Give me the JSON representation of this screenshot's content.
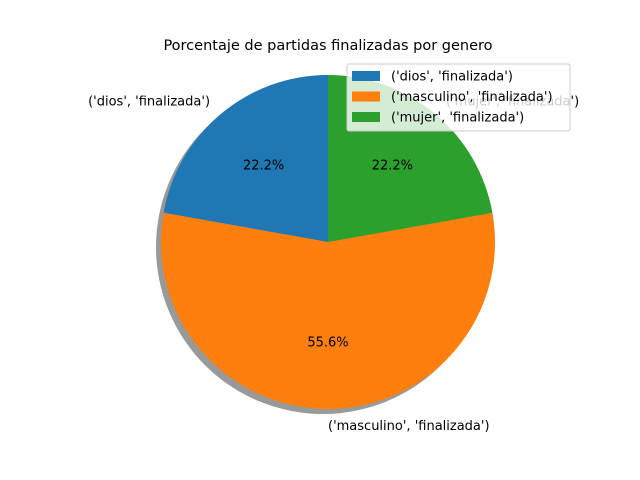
{
  "chart_data": {
    "type": "pie",
    "title": "Porcentaje de partidas finalizadas por genero",
    "slices": [
      {
        "label": "('dios', 'finalizada')",
        "value": 22.2,
        "pct_label": "22.2%",
        "color": "#1f77b4"
      },
      {
        "label": "('masculino', 'finalizada')",
        "value": 55.6,
        "pct_label": "55.6%",
        "color": "#ff7f0e"
      },
      {
        "label": "('mujer', 'finalizada')",
        "value": 22.2,
        "pct_label": "22.2%",
        "color": "#2ca02c"
      }
    ],
    "start_angle_deg": 90,
    "direction": "counterclockwise",
    "shadow": true,
    "legend": {
      "placement": "top-right",
      "entries": [
        "('dios', 'finalizada')",
        "('masculino', 'finalizada')",
        "('mujer', 'finalizada')"
      ]
    }
  }
}
